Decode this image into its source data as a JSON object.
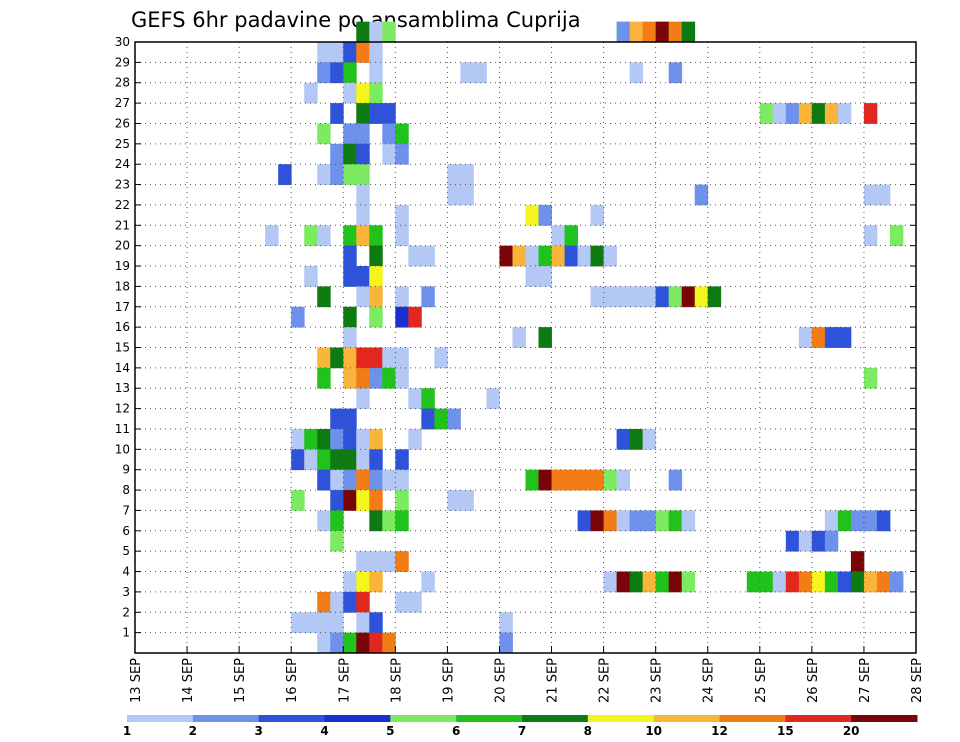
{
  "chart_data": {
    "type": "heatmap",
    "title": "GEFS 6hr padavine po ansamblima Cuprija",
    "x_tick_labels": [
      "13 SEP",
      "14 SEP",
      "15 SEP",
      "16 SEP",
      "17 SEP",
      "18 SEP",
      "19 SEP",
      "20 SEP",
      "21 SEP",
      "22 SEP",
      "23 SEP",
      "24 SEP",
      "25 SEP",
      "26 SEP",
      "27 SEP",
      "28 SEP"
    ],
    "y_tick_labels": [
      "1",
      "2",
      "3",
      "4",
      "5",
      "6",
      "7",
      "8",
      "9",
      "10",
      "11",
      "12",
      "13",
      "14",
      "15",
      "16",
      "17",
      "18",
      "19",
      "20",
      "21",
      "22",
      "23",
      "24",
      "25",
      "26",
      "27",
      "28",
      "29",
      "30"
    ],
    "xlim": [
      0,
      15
    ],
    "ylim": [
      0,
      30
    ],
    "cell_width_days": 0.25,
    "grid": true,
    "colorbar": {
      "placement": "bottom",
      "labels": [
        "1",
        "2",
        "3",
        "4",
        "5",
        "6",
        "7",
        "8",
        "10",
        "12",
        "15",
        "20"
      ],
      "colors": [
        "#b4c8f5",
        "#6e91ec",
        "#2e52d9",
        "#1a2fd0",
        "#7deb62",
        "#22c21c",
        "#0e7a12",
        "#f5f51e",
        "#f9b43c",
        "#f27d17",
        "#e2281e",
        "#7a0508"
      ]
    },
    "cells": [
      [
        30,
        4.25,
        6
      ],
      [
        30,
        4.5,
        0
      ],
      [
        30,
        4.75,
        4
      ],
      [
        30,
        9.25,
        1
      ],
      [
        30,
        9.5,
        8
      ],
      [
        30,
        9.75,
        9
      ],
      [
        30,
        10.0,
        11
      ],
      [
        30,
        10.25,
        9
      ],
      [
        30,
        10.5,
        6
      ],
      [
        29,
        3.5,
        0
      ],
      [
        29,
        3.75,
        0
      ],
      [
        29,
        4.0,
        2
      ],
      [
        29,
        4.25,
        9
      ],
      [
        29,
        4.5,
        0
      ],
      [
        28,
        3.5,
        1
      ],
      [
        28,
        3.75,
        2
      ],
      [
        28,
        4.0,
        5
      ],
      [
        28,
        4.5,
        0
      ],
      [
        28,
        6.25,
        0
      ],
      [
        28,
        6.5,
        0
      ],
      [
        28,
        9.5,
        0
      ],
      [
        28,
        10.25,
        1
      ],
      [
        27,
        3.25,
        0
      ],
      [
        27,
        4.0,
        0
      ],
      [
        27,
        4.25,
        7
      ],
      [
        27,
        4.5,
        4
      ],
      [
        26,
        3.75,
        2
      ],
      [
        26,
        4.25,
        6
      ],
      [
        26,
        4.5,
        2
      ],
      [
        26,
        4.75,
        2
      ],
      [
        26,
        12.0,
        4
      ],
      [
        26,
        12.25,
        0
      ],
      [
        26,
        12.5,
        1
      ],
      [
        26,
        12.75,
        8
      ],
      [
        26,
        13.0,
        6
      ],
      [
        26,
        13.25,
        8
      ],
      [
        26,
        13.5,
        0
      ],
      [
        26,
        14.0,
        10
      ],
      [
        25,
        3.5,
        4
      ],
      [
        25,
        4.0,
        1
      ],
      [
        25,
        4.25,
        1
      ],
      [
        25,
        4.75,
        1
      ],
      [
        25,
        5.0,
        5
      ],
      [
        24,
        3.75,
        1
      ],
      [
        24,
        4.0,
        6
      ],
      [
        24,
        4.25,
        2
      ],
      [
        24,
        4.75,
        0
      ],
      [
        24,
        5.0,
        1
      ],
      [
        23,
        2.75,
        2
      ],
      [
        23,
        3.5,
        0
      ],
      [
        23,
        3.75,
        1
      ],
      [
        23,
        4.0,
        4
      ],
      [
        23,
        4.25,
        4
      ],
      [
        23,
        6.0,
        0
      ],
      [
        23,
        6.25,
        0
      ],
      [
        22,
        4.25,
        0
      ],
      [
        22,
        6.0,
        0
      ],
      [
        22,
        6.25,
        0
      ],
      [
        22,
        10.75,
        1
      ],
      [
        22,
        14.0,
        0
      ],
      [
        22,
        14.25,
        0
      ],
      [
        21,
        4.25,
        0
      ],
      [
        21,
        5.0,
        0
      ],
      [
        21,
        7.5,
        7
      ],
      [
        21,
        7.75,
        1
      ],
      [
        21,
        8.75,
        0
      ],
      [
        20,
        2.5,
        0
      ],
      [
        20,
        3.25,
        4
      ],
      [
        20,
        3.5,
        0
      ],
      [
        20,
        4.0,
        5
      ],
      [
        20,
        4.25,
        8
      ],
      [
        20,
        4.5,
        5
      ],
      [
        20,
        5.0,
        0
      ],
      [
        20,
        8.0,
        0
      ],
      [
        20,
        8.25,
        5
      ],
      [
        20,
        14.0,
        0
      ],
      [
        20,
        14.5,
        4
      ],
      [
        19,
        4.0,
        2
      ],
      [
        19,
        4.5,
        6
      ],
      [
        19,
        5.25,
        0
      ],
      [
        19,
        5.5,
        0
      ],
      [
        19,
        7.0,
        11
      ],
      [
        19,
        7.25,
        8
      ],
      [
        19,
        7.5,
        0
      ],
      [
        19,
        7.75,
        5
      ],
      [
        19,
        8.0,
        8
      ],
      [
        19,
        8.25,
        2
      ],
      [
        19,
        8.5,
        0
      ],
      [
        19,
        8.75,
        6
      ],
      [
        19,
        9.0,
        0
      ],
      [
        18,
        3.25,
        0
      ],
      [
        18,
        4.0,
        2
      ],
      [
        18,
        4.25,
        2
      ],
      [
        18,
        4.5,
        7
      ],
      [
        18,
        7.5,
        0
      ],
      [
        18,
        7.75,
        0
      ],
      [
        17,
        3.5,
        6
      ],
      [
        17,
        4.25,
        0
      ],
      [
        17,
        4.5,
        8
      ],
      [
        17,
        5.0,
        0
      ],
      [
        17,
        5.5,
        1
      ],
      [
        17,
        8.75,
        0
      ],
      [
        17,
        9.0,
        0
      ],
      [
        17,
        9.25,
        0
      ],
      [
        17,
        9.5,
        0
      ],
      [
        17,
        9.75,
        0
      ],
      [
        17,
        10.0,
        2
      ],
      [
        17,
        10.25,
        4
      ],
      [
        17,
        10.5,
        11
      ],
      [
        17,
        10.75,
        7
      ],
      [
        17,
        11.0,
        6
      ],
      [
        16,
        3.0,
        1
      ],
      [
        16,
        4.0,
        6
      ],
      [
        16,
        4.5,
        4
      ],
      [
        16,
        5.0,
        3
      ],
      [
        16,
        5.25,
        10
      ],
      [
        15,
        4.0,
        0
      ],
      [
        15,
        7.25,
        0
      ],
      [
        15,
        7.75,
        6
      ],
      [
        15,
        12.75,
        0
      ],
      [
        15,
        13.0,
        9
      ],
      [
        15,
        13.25,
        2
      ],
      [
        15,
        13.5,
        2
      ],
      [
        14,
        3.5,
        8
      ],
      [
        14,
        3.75,
        6
      ],
      [
        14,
        4.0,
        8
      ],
      [
        14,
        4.25,
        10
      ],
      [
        14,
        4.5,
        10
      ],
      [
        14,
        4.75,
        0
      ],
      [
        14,
        5.0,
        0
      ],
      [
        14,
        5.75,
        0
      ],
      [
        13,
        3.5,
        5
      ],
      [
        13,
        4.0,
        8
      ],
      [
        13,
        4.25,
        9
      ],
      [
        13,
        4.5,
        1
      ],
      [
        13,
        4.75,
        5
      ],
      [
        13,
        5.0,
        0
      ],
      [
        13,
        14.0,
        4
      ],
      [
        12,
        4.25,
        0
      ],
      [
        12,
        5.25,
        0
      ],
      [
        12,
        5.5,
        5
      ],
      [
        12,
        6.75,
        0
      ],
      [
        11,
        3.75,
        2
      ],
      [
        11,
        4.0,
        2
      ],
      [
        11,
        5.5,
        2
      ],
      [
        11,
        5.75,
        5
      ],
      [
        11,
        6.0,
        1
      ],
      [
        10,
        3.0,
        0
      ],
      [
        10,
        3.25,
        5
      ],
      [
        10,
        3.5,
        6
      ],
      [
        10,
        3.75,
        1
      ],
      [
        10,
        4.0,
        2
      ],
      [
        10,
        4.25,
        0
      ],
      [
        10,
        4.5,
        8
      ],
      [
        10,
        5.25,
        0
      ],
      [
        10,
        9.25,
        2
      ],
      [
        10,
        9.5,
        6
      ],
      [
        10,
        9.75,
        0
      ],
      [
        9,
        3.0,
        2
      ],
      [
        9,
        3.25,
        0
      ],
      [
        9,
        3.5,
        5
      ],
      [
        9,
        3.75,
        6
      ],
      [
        9,
        4.0,
        6
      ],
      [
        9,
        4.25,
        0
      ],
      [
        9,
        4.5,
        2
      ],
      [
        9,
        5.0,
        2
      ],
      [
        8,
        3.5,
        2
      ],
      [
        8,
        3.75,
        0
      ],
      [
        8,
        4.0,
        1
      ],
      [
        8,
        4.25,
        9
      ],
      [
        8,
        4.5,
        1
      ],
      [
        8,
        4.75,
        0
      ],
      [
        8,
        5.0,
        0
      ],
      [
        8,
        7.5,
        5
      ],
      [
        8,
        7.75,
        11
      ],
      [
        8,
        8.0,
        9
      ],
      [
        8,
        8.25,
        9
      ],
      [
        8,
        8.5,
        9
      ],
      [
        8,
        8.75,
        9
      ],
      [
        8,
        9.0,
        4
      ],
      [
        8,
        9.25,
        0
      ],
      [
        8,
        10.25,
        1
      ],
      [
        7,
        3.0,
        4
      ],
      [
        7,
        3.75,
        2
      ],
      [
        7,
        4.0,
        11
      ],
      [
        7,
        4.25,
        7
      ],
      [
        7,
        4.5,
        9
      ],
      [
        7,
        5.0,
        4
      ],
      [
        7,
        6.0,
        0
      ],
      [
        7,
        6.25,
        0
      ],
      [
        6,
        3.5,
        0
      ],
      [
        6,
        3.75,
        5
      ],
      [
        6,
        4.5,
        6
      ],
      [
        6,
        4.75,
        4
      ],
      [
        6,
        5.0,
        5
      ],
      [
        6,
        8.5,
        2
      ],
      [
        6,
        8.75,
        11
      ],
      [
        6,
        9.0,
        9
      ],
      [
        6,
        9.25,
        0
      ],
      [
        6,
        9.5,
        1
      ],
      [
        6,
        9.75,
        1
      ],
      [
        6,
        10.0,
        4
      ],
      [
        6,
        10.25,
        5
      ],
      [
        6,
        10.5,
        0
      ],
      [
        6,
        13.25,
        0
      ],
      [
        6,
        13.5,
        5
      ],
      [
        6,
        13.75,
        1
      ],
      [
        6,
        14.0,
        1
      ],
      [
        6,
        14.25,
        2
      ],
      [
        5,
        3.75,
        4
      ],
      [
        5,
        12.5,
        2
      ],
      [
        5,
        12.75,
        0
      ],
      [
        5,
        13.0,
        2
      ],
      [
        5,
        13.25,
        1
      ],
      [
        4,
        4.25,
        0
      ],
      [
        4,
        4.5,
        0
      ],
      [
        4,
        4.75,
        0
      ],
      [
        4,
        5.0,
        9
      ],
      [
        4,
        13.75,
        11
      ],
      [
        3,
        4.0,
        0
      ],
      [
        4,
        4.25,
        0
      ],
      [
        3,
        4.25,
        7
      ],
      [
        3,
        4.5,
        8
      ],
      [
        3,
        5.5,
        0
      ],
      [
        3,
        9.0,
        0
      ],
      [
        3,
        9.25,
        11
      ],
      [
        3,
        9.5,
        6
      ],
      [
        3,
        9.75,
        8
      ],
      [
        3,
        10.0,
        5
      ],
      [
        3,
        10.25,
        11
      ],
      [
        3,
        10.5,
        4
      ],
      [
        3,
        11.75,
        5
      ],
      [
        3,
        12.0,
        5
      ],
      [
        3,
        12.25,
        0
      ],
      [
        3,
        12.5,
        10
      ],
      [
        3,
        12.75,
        9
      ],
      [
        3,
        13.0,
        7
      ],
      [
        3,
        13.25,
        5
      ],
      [
        3,
        13.5,
        2
      ],
      [
        3,
        13.75,
        6
      ],
      [
        3,
        14.0,
        8
      ],
      [
        3,
        14.25,
        9
      ],
      [
        3,
        14.5,
        1
      ],
      [
        2,
        3.5,
        9
      ],
      [
        2,
        3.75,
        0
      ],
      [
        2,
        4.0,
        2
      ],
      [
        2,
        4.25,
        10
      ],
      [
        2,
        5.0,
        0
      ],
      [
        2,
        5.25,
        0
      ],
      [
        1,
        3.0,
        0
      ],
      [
        1,
        3.25,
        0
      ],
      [
        1,
        3.5,
        0
      ],
      [
        1,
        3.75,
        0
      ],
      [
        1,
        4.25,
        0
      ],
      [
        1,
        4.5,
        2
      ],
      [
        1,
        7.0,
        0
      ],
      [
        0,
        3.5,
        0
      ],
      [
        0,
        3.75,
        1
      ],
      [
        0,
        4.0,
        5
      ],
      [
        0,
        4.25,
        11
      ],
      [
        0,
        4.5,
        10
      ],
      [
        0,
        4.75,
        9
      ],
      [
        0,
        7.0,
        1
      ]
    ]
  }
}
